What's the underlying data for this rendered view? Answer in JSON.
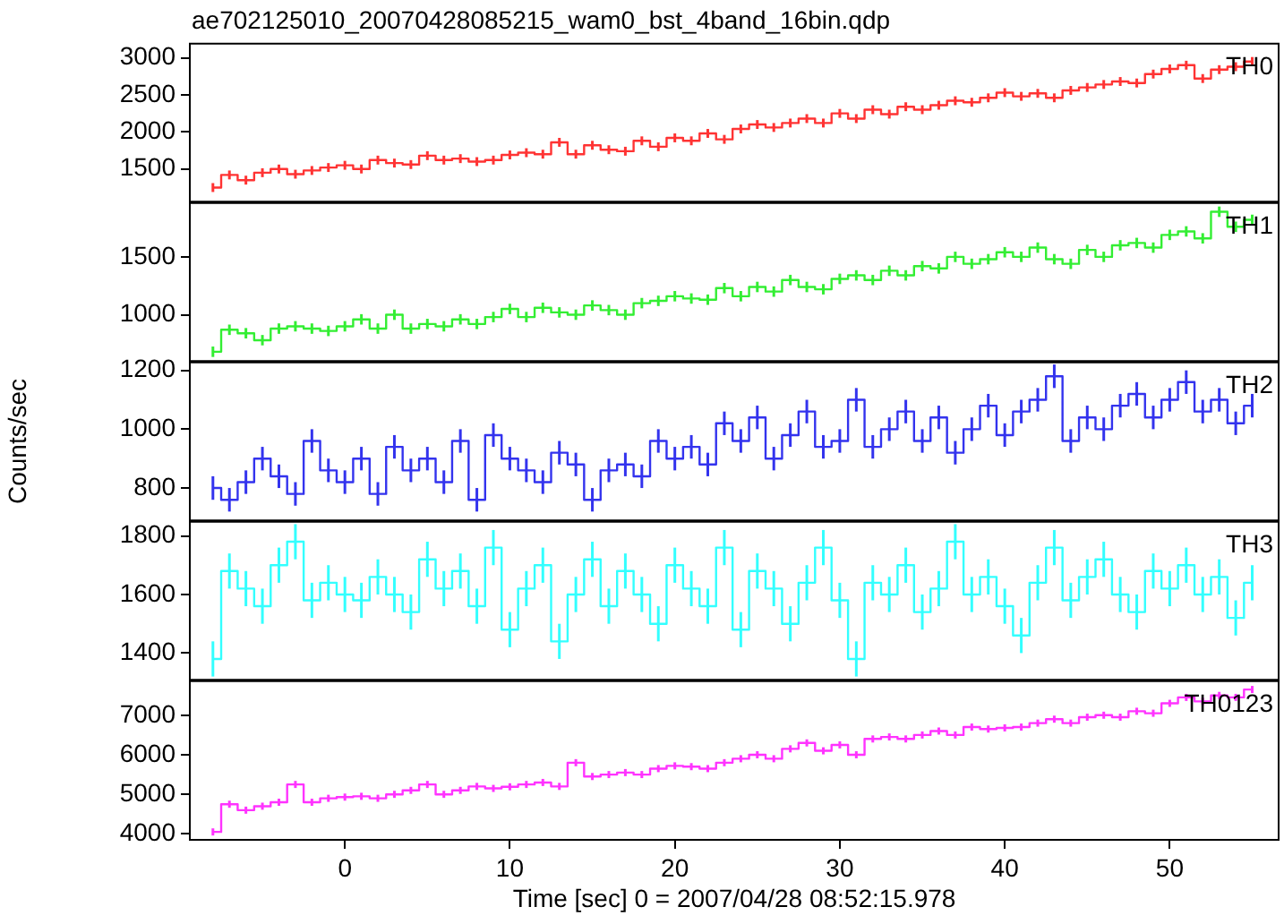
{
  "chart_data": [
    {
      "type": "step",
      "title": "ae702125010_20070428085215_wam0_bst_4band_16bin.qdp",
      "annotations": [
        "TH0"
      ],
      "color": "#ff3333",
      "grid": false,
      "tick_labels": "y",
      "xlim": [
        -9.4,
        56.6
      ],
      "xticks": [
        0,
        10,
        20,
        30,
        40,
        50
      ],
      "ylim": [
        1060,
        3190
      ],
      "yticks": [
        1500,
        2000,
        2500,
        3000
      ],
      "x": [
        -8,
        -7,
        -6,
        -5,
        -4,
        -3,
        -2,
        -1,
        0,
        1,
        2,
        3,
        4,
        5,
        6,
        7,
        8,
        9,
        10,
        11,
        12,
        13,
        14,
        15,
        16,
        17,
        18,
        19,
        20,
        21,
        22,
        23,
        24,
        25,
        26,
        27,
        28,
        29,
        30,
        31,
        32,
        33,
        34,
        35,
        36,
        37,
        38,
        39,
        40,
        41,
        42,
        43,
        44,
        45,
        46,
        47,
        48,
        49,
        50,
        51,
        52,
        53,
        54,
        55
      ],
      "values": [
        1250,
        1420,
        1350,
        1450,
        1500,
        1430,
        1480,
        1520,
        1550,
        1500,
        1620,
        1580,
        1560,
        1680,
        1620,
        1640,
        1600,
        1620,
        1690,
        1720,
        1700,
        1860,
        1700,
        1820,
        1760,
        1740,
        1880,
        1800,
        1920,
        1880,
        1980,
        1900,
        2040,
        2100,
        2060,
        2120,
        2180,
        2120,
        2250,
        2180,
        2300,
        2240,
        2340,
        2300,
        2360,
        2420,
        2400,
        2460,
        2530,
        2480,
        2520,
        2460,
        2560,
        2600,
        2640,
        2680,
        2660,
        2780,
        2850,
        2900,
        2720,
        2840,
        2880,
        2950
      ],
      "errors": [
        60,
        60,
        60,
        60,
        60,
        60,
        60,
        60,
        60,
        60,
        60,
        60,
        60,
        60,
        60,
        60,
        60,
        60,
        60,
        60,
        60,
        60,
        60,
        60,
        60,
        60,
        60,
        60,
        60,
        60,
        60,
        60,
        60,
        60,
        60,
        60,
        60,
        60,
        60,
        60,
        60,
        60,
        60,
        60,
        60,
        60,
        60,
        60,
        60,
        60,
        60,
        60,
        60,
        60,
        60,
        60,
        60,
        60,
        60,
        60,
        60,
        60,
        60,
        60
      ]
    },
    {
      "type": "step",
      "annotations": [
        "TH1"
      ],
      "color": "#33ee33",
      "grid": false,
      "tick_labels": "y",
      "xlim": [
        -9.4,
        56.6
      ],
      "xticks": [
        0,
        10,
        20,
        30,
        40,
        50
      ],
      "ylim": [
        600,
        1965
      ],
      "yticks": [
        1000,
        1500
      ],
      "x": [
        -8,
        -7,
        -6,
        -5,
        -4,
        -3,
        -2,
        -1,
        0,
        1,
        2,
        3,
        4,
        5,
        6,
        7,
        8,
        9,
        10,
        11,
        12,
        13,
        14,
        15,
        16,
        17,
        18,
        19,
        20,
        21,
        22,
        23,
        24,
        25,
        26,
        27,
        28,
        29,
        30,
        31,
        32,
        33,
        34,
        35,
        36,
        37,
        38,
        39,
        40,
        41,
        42,
        43,
        44,
        45,
        46,
        47,
        48,
        49,
        50,
        51,
        52,
        53,
        54,
        55
      ],
      "values": [
        680,
        870,
        840,
        780,
        880,
        900,
        880,
        860,
        900,
        960,
        880,
        1000,
        880,
        920,
        900,
        960,
        920,
        980,
        1050,
        980,
        1060,
        1020,
        1000,
        1080,
        1040,
        1000,
        1100,
        1120,
        1160,
        1140,
        1130,
        1230,
        1160,
        1240,
        1200,
        1300,
        1240,
        1220,
        1310,
        1340,
        1300,
        1380,
        1340,
        1420,
        1400,
        1500,
        1440,
        1480,
        1540,
        1500,
        1580,
        1480,
        1440,
        1560,
        1500,
        1600,
        1620,
        1580,
        1690,
        1720,
        1660,
        1890,
        1760,
        1820
      ],
      "errors": [
        45,
        45,
        45,
        45,
        45,
        45,
        45,
        45,
        45,
        45,
        45,
        45,
        45,
        45,
        45,
        45,
        45,
        45,
        45,
        45,
        45,
        45,
        45,
        45,
        45,
        45,
        45,
        45,
        45,
        45,
        45,
        45,
        45,
        45,
        45,
        45,
        45,
        45,
        45,
        45,
        45,
        45,
        45,
        45,
        45,
        45,
        45,
        45,
        45,
        45,
        45,
        45,
        45,
        45,
        45,
        45,
        45,
        45,
        45,
        45,
        45,
        45,
        45,
        45
      ]
    },
    {
      "type": "step",
      "annotations": [
        "TH2"
      ],
      "ylabel": "Counts/sec",
      "color": "#3333ee",
      "grid": false,
      "tick_labels": "y",
      "xlim": [
        -9.4,
        56.6
      ],
      "xticks": [
        0,
        10,
        20,
        30,
        40,
        50
      ],
      "ylim": [
        690,
        1227
      ],
      "yticks": [
        800,
        1000,
        1200
      ],
      "x": [
        -8,
        -7,
        -6,
        -5,
        -4,
        -3,
        -2,
        -1,
        0,
        1,
        2,
        3,
        4,
        5,
        6,
        7,
        8,
        9,
        10,
        11,
        12,
        13,
        14,
        15,
        16,
        17,
        18,
        19,
        20,
        21,
        22,
        23,
        24,
        25,
        26,
        27,
        28,
        29,
        30,
        31,
        32,
        33,
        34,
        35,
        36,
        37,
        38,
        39,
        40,
        41,
        42,
        43,
        44,
        45,
        46,
        47,
        48,
        49,
        50,
        51,
        52,
        53,
        54,
        55
      ],
      "values": [
        800,
        760,
        820,
        900,
        840,
        780,
        960,
        860,
        820,
        900,
        780,
        940,
        860,
        900,
        820,
        960,
        760,
        980,
        900,
        860,
        820,
        920,
        880,
        760,
        860,
        880,
        840,
        960,
        900,
        940,
        880,
        1020,
        960,
        1040,
        900,
        980,
        1060,
        940,
        960,
        1100,
        940,
        1000,
        1060,
        960,
        1040,
        920,
        1000,
        1080,
        980,
        1060,
        1100,
        1180,
        960,
        1040,
        1000,
        1080,
        1120,
        1040,
        1100,
        1160,
        1060,
        1100,
        1020,
        1080
      ],
      "errors": [
        40,
        40,
        40,
        40,
        40,
        40,
        40,
        40,
        40,
        40,
        40,
        40,
        40,
        40,
        40,
        40,
        40,
        40,
        40,
        40,
        40,
        40,
        40,
        40,
        40,
        40,
        40,
        40,
        40,
        40,
        40,
        40,
        40,
        40,
        40,
        40,
        40,
        40,
        40,
        40,
        40,
        40,
        40,
        40,
        40,
        40,
        40,
        40,
        40,
        40,
        40,
        40,
        40,
        40,
        40,
        40,
        40,
        40,
        40,
        40,
        40,
        40,
        40,
        40
      ]
    },
    {
      "type": "step",
      "annotations": [
        "TH3"
      ],
      "color": "#33ffff",
      "grid": false,
      "tick_labels": "y",
      "xlim": [
        -9.4,
        56.6
      ],
      "xticks": [
        0,
        10,
        20,
        30,
        40,
        50
      ],
      "ylim": [
        1309,
        1848
      ],
      "yticks": [
        1400,
        1600,
        1800
      ],
      "x": [
        -8,
        -7,
        -6,
        -5,
        -4,
        -3,
        -2,
        -1,
        0,
        1,
        2,
        3,
        4,
        5,
        6,
        7,
        8,
        9,
        10,
        11,
        12,
        13,
        14,
        15,
        16,
        17,
        18,
        19,
        20,
        21,
        22,
        23,
        24,
        25,
        26,
        27,
        28,
        29,
        30,
        31,
        32,
        33,
        34,
        35,
        36,
        37,
        38,
        39,
        40,
        41,
        42,
        43,
        44,
        45,
        46,
        47,
        48,
        49,
        50,
        51,
        52,
        53,
        54,
        55
      ],
      "values": [
        1380,
        1680,
        1620,
        1560,
        1700,
        1780,
        1580,
        1640,
        1600,
        1580,
        1660,
        1600,
        1540,
        1720,
        1620,
        1680,
        1560,
        1760,
        1480,
        1620,
        1700,
        1440,
        1600,
        1720,
        1560,
        1680,
        1600,
        1500,
        1700,
        1620,
        1560,
        1760,
        1480,
        1680,
        1620,
        1500,
        1640,
        1760,
        1580,
        1380,
        1640,
        1600,
        1700,
        1540,
        1620,
        1780,
        1600,
        1660,
        1560,
        1460,
        1640,
        1760,
        1580,
        1660,
        1720,
        1600,
        1540,
        1680,
        1620,
        1700,
        1600,
        1660,
        1520,
        1640
      ],
      "errors": [
        60,
        60,
        60,
        60,
        60,
        60,
        60,
        60,
        60,
        60,
        60,
        60,
        60,
        60,
        60,
        60,
        60,
        60,
        60,
        60,
        60,
        60,
        60,
        60,
        60,
        60,
        60,
        60,
        60,
        60,
        60,
        60,
        60,
        60,
        60,
        60,
        60,
        60,
        60,
        60,
        60,
        60,
        60,
        60,
        60,
        60,
        60,
        60,
        60,
        60,
        60,
        60,
        60,
        60,
        60,
        60,
        60,
        60,
        60,
        60,
        60,
        60,
        60,
        60
      ]
    },
    {
      "type": "step",
      "annotations": [
        "TH0123"
      ],
      "xlabel": "Time [sec] 0 = 2007/04/28 08:52:15.978",
      "color": "#ff33ff",
      "grid": false,
      "xlim": [
        -9.4,
        56.6
      ],
      "xticks": [
        0,
        10,
        20,
        30,
        40,
        50
      ],
      "ylim": [
        3850,
        7860
      ],
      "yticks": [
        4000,
        5000,
        6000,
        7000
      ],
      "x": [
        -8,
        -7,
        -6,
        -5,
        -4,
        -3,
        -2,
        -1,
        0,
        1,
        2,
        3,
        4,
        5,
        6,
        7,
        8,
        9,
        10,
        11,
        12,
        13,
        14,
        15,
        16,
        17,
        18,
        19,
        20,
        21,
        22,
        23,
        24,
        25,
        26,
        27,
        28,
        29,
        30,
        31,
        32,
        33,
        34,
        35,
        36,
        37,
        38,
        39,
        40,
        41,
        42,
        43,
        44,
        45,
        46,
        47,
        48,
        49,
        50,
        51,
        52,
        53,
        54,
        55
      ],
      "values": [
        4050,
        4750,
        4600,
        4700,
        4800,
        5250,
        4800,
        4900,
        4930,
        4950,
        4900,
        5000,
        5100,
        5250,
        5000,
        5100,
        5200,
        5150,
        5190,
        5250,
        5300,
        5200,
        5800,
        5450,
        5500,
        5550,
        5500,
        5650,
        5720,
        5700,
        5650,
        5800,
        5900,
        6000,
        5900,
        6150,
        6300,
        6100,
        6250,
        6000,
        6400,
        6450,
        6400,
        6500,
        6600,
        6500,
        6700,
        6650,
        6680,
        6700,
        6800,
        6900,
        6800,
        6950,
        7000,
        6950,
        7100,
        7050,
        7300,
        7450,
        7350,
        7500,
        7450,
        7650
      ],
      "errors": [
        90,
        90,
        90,
        90,
        90,
        90,
        90,
        90,
        90,
        90,
        90,
        90,
        90,
        90,
        90,
        90,
        90,
        90,
        90,
        90,
        90,
        90,
        90,
        90,
        90,
        90,
        90,
        90,
        90,
        90,
        90,
        90,
        90,
        90,
        90,
        90,
        90,
        90,
        90,
        90,
        90,
        90,
        90,
        90,
        90,
        90,
        90,
        90,
        90,
        90,
        90,
        90,
        90,
        90,
        90,
        90,
        90,
        90,
        90,
        90,
        90,
        90,
        90,
        90
      ]
    }
  ]
}
